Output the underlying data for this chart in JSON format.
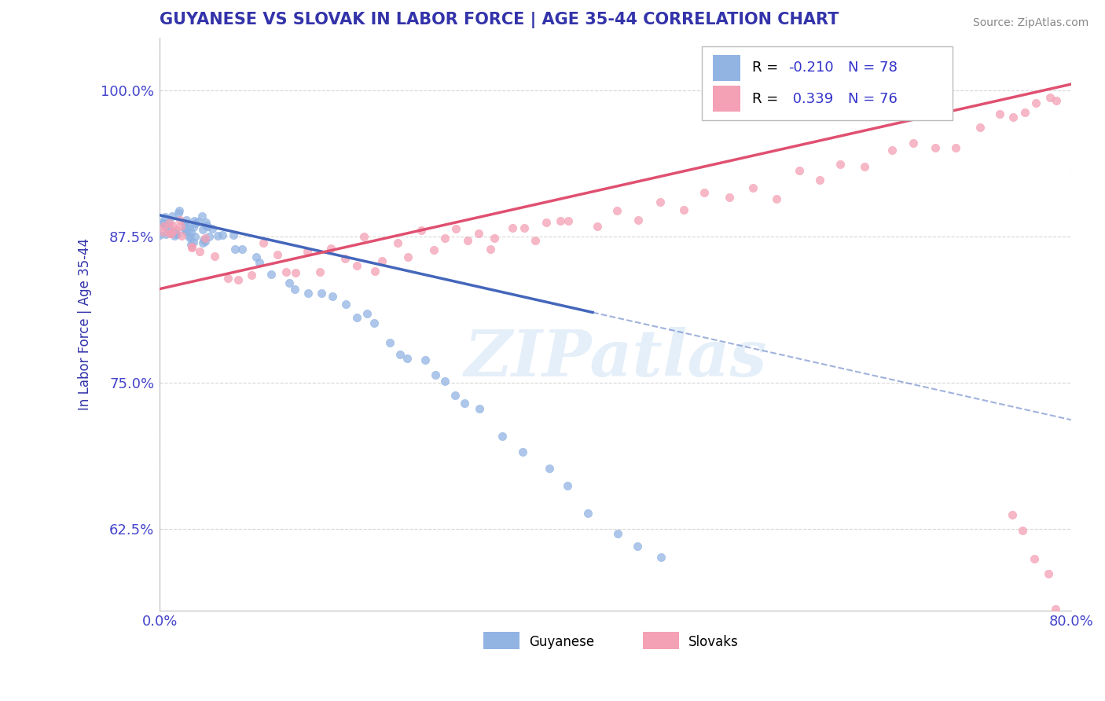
{
  "title": "GUYANESE VS SLOVAK IN LABOR FORCE | AGE 35-44 CORRELATION CHART",
  "source": "Source: ZipAtlas.com",
  "ylabel": "In Labor Force | Age 35-44",
  "xlim": [
    0.0,
    0.8
  ],
  "ylim": [
    0.555,
    1.045
  ],
  "xticks": [
    0.0,
    0.8
  ],
  "xticklabels": [
    "0.0%",
    "80.0%"
  ],
  "yticks": [
    0.625,
    0.75,
    0.875,
    1.0
  ],
  "yticklabels": [
    "62.5%",
    "75.0%",
    "87.5%",
    "100.0%"
  ],
  "guyanese_color": "#92B4E3",
  "slovak_color": "#F4A0B5",
  "guyanese_R": -0.21,
  "guyanese_N": 78,
  "slovak_R": 0.339,
  "slovak_N": 76,
  "trend_guyanese_color": "#4466BB",
  "trend_slovak_color": "#E05070",
  "watermark": "ZIPatlas",
  "legend_guyanese": "Guyanese",
  "legend_slovak": "Slovaks",
  "title_color": "#3333AA",
  "axis_label_color": "#3333AA",
  "tick_color": "#4444CC",
  "source_color": "#888888",
  "guy_x": [
    0.002,
    0.003,
    0.004,
    0.005,
    0.006,
    0.007,
    0.008,
    0.009,
    0.01,
    0.011,
    0.012,
    0.013,
    0.014,
    0.015,
    0.016,
    0.017,
    0.018,
    0.019,
    0.02,
    0.021,
    0.022,
    0.023,
    0.024,
    0.025,
    0.026,
    0.027,
    0.028,
    0.029,
    0.03,
    0.031,
    0.032,
    0.033,
    0.034,
    0.035,
    0.036,
    0.037,
    0.038,
    0.039,
    0.04,
    0.041,
    0.042,
    0.043,
    0.044,
    0.045,
    0.05,
    0.055,
    0.06,
    0.065,
    0.07,
    0.08,
    0.09,
    0.1,
    0.11,
    0.12,
    0.13,
    0.14,
    0.15,
    0.16,
    0.17,
    0.18,
    0.19,
    0.2,
    0.21,
    0.22,
    0.23,
    0.24,
    0.25,
    0.26,
    0.27,
    0.28,
    0.3,
    0.32,
    0.34,
    0.36,
    0.38,
    0.4,
    0.42,
    0.44
  ],
  "guy_y": [
    0.88,
    0.885,
    0.878,
    0.89,
    0.883,
    0.875,
    0.888,
    0.892,
    0.879,
    0.886,
    0.882,
    0.877,
    0.891,
    0.884,
    0.876,
    0.889,
    0.881,
    0.874,
    0.887,
    0.893,
    0.88,
    0.876,
    0.883,
    0.878,
    0.885,
    0.87,
    0.888,
    0.875,
    0.882,
    0.879,
    0.884,
    0.886,
    0.877,
    0.881,
    0.873,
    0.89,
    0.876,
    0.883,
    0.879,
    0.885,
    0.877,
    0.881,
    0.876,
    0.884,
    0.875,
    0.872,
    0.868,
    0.865,
    0.86,
    0.855,
    0.85,
    0.845,
    0.84,
    0.835,
    0.83,
    0.825,
    0.82,
    0.815,
    0.808,
    0.8,
    0.793,
    0.786,
    0.778,
    0.77,
    0.763,
    0.755,
    0.748,
    0.74,
    0.73,
    0.72,
    0.705,
    0.69,
    0.675,
    0.66,
    0.645,
    0.63,
    0.615,
    0.6
  ],
  "slov_x": [
    0.002,
    0.004,
    0.006,
    0.008,
    0.01,
    0.012,
    0.014,
    0.016,
    0.018,
    0.02,
    0.025,
    0.03,
    0.035,
    0.04,
    0.05,
    0.06,
    0.07,
    0.08,
    0.09,
    0.1,
    0.11,
    0.12,
    0.13,
    0.14,
    0.15,
    0.16,
    0.17,
    0.18,
    0.19,
    0.2,
    0.21,
    0.22,
    0.23,
    0.24,
    0.25,
    0.26,
    0.27,
    0.28,
    0.29,
    0.3,
    0.31,
    0.32,
    0.33,
    0.34,
    0.35,
    0.36,
    0.38,
    0.4,
    0.42,
    0.44,
    0.46,
    0.48,
    0.5,
    0.52,
    0.54,
    0.56,
    0.58,
    0.6,
    0.62,
    0.64,
    0.66,
    0.68,
    0.7,
    0.72,
    0.74,
    0.75,
    0.76,
    0.77,
    0.78,
    0.79,
    0.75,
    0.76,
    0.77,
    0.78,
    0.79,
    0.8
  ],
  "slov_y": [
    0.88,
    0.883,
    0.876,
    0.888,
    0.872,
    0.885,
    0.878,
    0.89,
    0.874,
    0.882,
    0.865,
    0.87,
    0.86,
    0.875,
    0.855,
    0.85,
    0.845,
    0.84,
    0.86,
    0.855,
    0.848,
    0.852,
    0.858,
    0.845,
    0.862,
    0.855,
    0.85,
    0.86,
    0.845,
    0.855,
    0.87,
    0.86,
    0.875,
    0.865,
    0.87,
    0.88,
    0.865,
    0.875,
    0.87,
    0.88,
    0.875,
    0.885,
    0.878,
    0.89,
    0.882,
    0.895,
    0.888,
    0.9,
    0.895,
    0.91,
    0.905,
    0.915,
    0.91,
    0.92,
    0.915,
    0.925,
    0.93,
    0.935,
    0.94,
    0.945,
    0.95,
    0.955,
    0.96,
    0.965,
    0.97,
    0.975,
    0.98,
    0.985,
    0.99,
    0.995,
    0.64,
    0.62,
    0.6,
    0.58,
    0.56,
    0.54
  ]
}
